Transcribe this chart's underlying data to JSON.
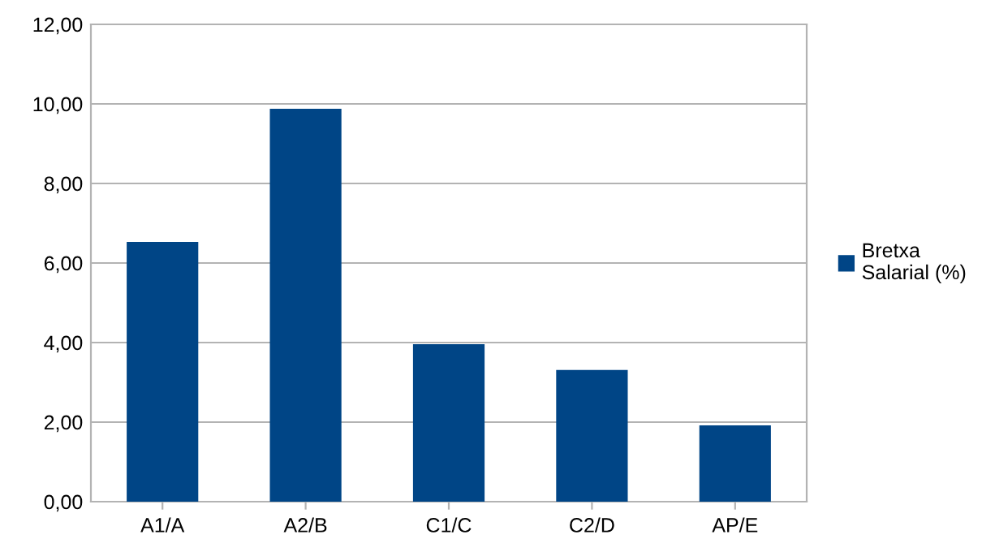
{
  "chart_data": {
    "type": "bar",
    "categories": [
      "A1/A",
      "A2/B",
      "C1/C",
      "C2/D",
      "AP/E"
    ],
    "series": [
      {
        "name": "Bretxa Salarial (%)",
        "color": "#004586",
        "values": [
          6.53,
          9.88,
          3.96,
          3.31,
          1.92
        ]
      }
    ],
    "ylim": [
      0,
      12
    ],
    "yticks": [
      {
        "value": 0,
        "label": "0,00"
      },
      {
        "value": 2,
        "label": "2,00"
      },
      {
        "value": 4,
        "label": "4,00"
      },
      {
        "value": 6,
        "label": "6,00"
      },
      {
        "value": 8,
        "label": "8,00"
      },
      {
        "value": 10,
        "label": "10,00"
      },
      {
        "value": 12,
        "label": "12,00"
      }
    ],
    "grid": "y",
    "legend": "right"
  }
}
